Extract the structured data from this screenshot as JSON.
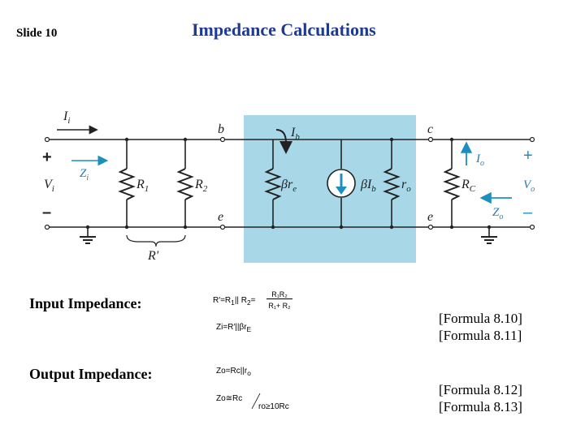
{
  "slide": {
    "number": "Slide 10",
    "title": "Impedance Calculations"
  },
  "circuit": {
    "labels": {
      "ii": "I",
      "ii_sub": "i",
      "plus_in": "+",
      "minus_in": "–",
      "vi": "V",
      "vi_sub": "i",
      "zi": "Z",
      "zi_sub": "i",
      "r1": "R",
      "r1_sub": "1",
      "r2": "R",
      "r2_sub": "2",
      "rprime": "R′",
      "b": "b",
      "e1": "e",
      "e2": "e",
      "c": "c",
      "ib": "I",
      "ib_sub": "b",
      "bre_beta": "β",
      "bre_r": "r",
      "bre_sub": "e",
      "bib_beta": "β",
      "bib_i": "I",
      "bib_sub": "b",
      "ro": "r",
      "ro_sub": "o",
      "rc": "R",
      "rc_sub": "C",
      "io": "I",
      "io_sub": "o",
      "zo": "Z",
      "zo_sub": "o",
      "vo": "V",
      "vo_sub": "o",
      "plus_out": "+",
      "minus_out": "–"
    },
    "colors": {
      "wire": "#222222",
      "shade": "#a8d8e8",
      "accent": "#1c8fc0",
      "label_blue": "#2a7ab0"
    }
  },
  "input_impedance": {
    "label": "Input Impedance:",
    "eq1_lhs": "R′=R",
    "eq1_sub1": "1",
    "eq1_mid": "|| R",
    "eq1_sub2": "2",
    "eq1_eq": "=",
    "eq1_num": "R₁R₂",
    "eq1_den": "R₁+ R₂",
    "eq2_text": "Zi=R′||βr",
    "eq2_sub": "E",
    "ref1": "[Formula 8.10]",
    "ref2": "[Formula 8.11]"
  },
  "output_impedance": {
    "label": "Output Impedance:",
    "eq3_text": "Zo=Rc||r",
    "eq3_sub": "o",
    "eq4_lhs": "Zo≅Rc",
    "eq4_cond": "ro≥10Rc",
    "ref3": "[Formula 8.12]",
    "ref4": "[Formula 8.13]"
  }
}
